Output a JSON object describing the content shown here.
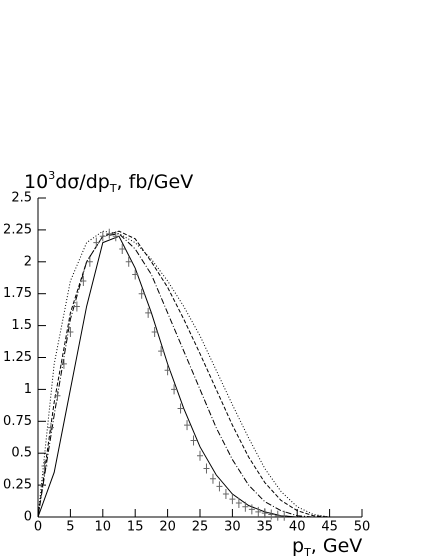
{
  "chart_data": {
    "type": "line",
    "ylabel": [
      "10",
      "3",
      "dσ/dp",
      "T",
      ", fb/GeV"
    ],
    "xlabel": [
      "p",
      "T",
      ", GeV"
    ],
    "x": [
      0,
      2.5,
      5,
      7.5,
      10,
      12.5,
      15,
      17.5,
      20,
      22.5,
      25,
      27.5,
      30,
      32.5,
      35,
      37.5,
      40,
      42.5,
      45
    ],
    "series": [
      {
        "style": "solid",
        "color": "#000000",
        "values": [
          0,
          0.35,
          1.0,
          1.65,
          2.15,
          2.2,
          1.95,
          1.6,
          1.2,
          0.85,
          0.55,
          0.33,
          0.18,
          0.09,
          0.04,
          0.01,
          0,
          null,
          null
        ]
      },
      {
        "style": "dashdot",
        "color": "#000000",
        "values": [
          0,
          0.8,
          1.55,
          2.0,
          2.2,
          2.22,
          2.1,
          1.9,
          1.6,
          1.3,
          1.0,
          0.7,
          0.45,
          0.25,
          0.12,
          0.05,
          0.01,
          0,
          null
        ]
      },
      {
        "style": "dashed",
        "color": "#000000",
        "values": [
          0,
          0.9,
          1.6,
          2.0,
          2.2,
          2.24,
          2.18,
          2.0,
          1.8,
          1.55,
          1.28,
          1.0,
          0.72,
          0.47,
          0.27,
          0.13,
          0.05,
          0.01,
          0
        ]
      },
      {
        "style": "dotted",
        "color": "#000000",
        "values": [
          0,
          1.2,
          1.85,
          2.15,
          2.24,
          2.22,
          2.15,
          2.02,
          1.85,
          1.65,
          1.42,
          1.15,
          0.88,
          0.62,
          0.38,
          0.2,
          0.08,
          0.02,
          0
        ]
      }
    ],
    "points": {
      "style": "cross",
      "color": "#666666",
      "x": [
        1,
        2,
        3,
        4,
        5,
        6,
        7,
        8,
        9,
        10,
        11,
        12,
        13,
        14,
        15,
        16,
        17,
        18,
        19,
        20,
        21,
        22,
        23,
        24,
        25,
        26,
        27,
        28,
        29,
        30,
        31,
        32,
        33,
        34,
        35,
        36,
        37,
        38
      ],
      "values": [
        0.4,
        0.7,
        0.95,
        1.2,
        1.45,
        1.65,
        1.85,
        2.0,
        2.15,
        2.2,
        2.22,
        2.2,
        2.1,
        2.0,
        1.9,
        1.75,
        1.6,
        1.45,
        1.3,
        1.15,
        1.0,
        0.85,
        0.72,
        0.6,
        0.48,
        0.38,
        0.3,
        0.24,
        0.18,
        0.14,
        0.11,
        0.08,
        0.06,
        0.04,
        0.03,
        0.02,
        0.01,
        0.01
      ]
    },
    "xlim": [
      0,
      50
    ],
    "xticks": [
      0,
      5,
      10,
      15,
      20,
      25,
      30,
      35,
      40,
      45,
      50
    ],
    "ylim": [
      0,
      2.5
    ],
    "yticks": [
      0,
      0.25,
      0.5,
      0.75,
      1,
      1.25,
      1.5,
      1.75,
      2,
      2.25,
      2.5
    ]
  }
}
